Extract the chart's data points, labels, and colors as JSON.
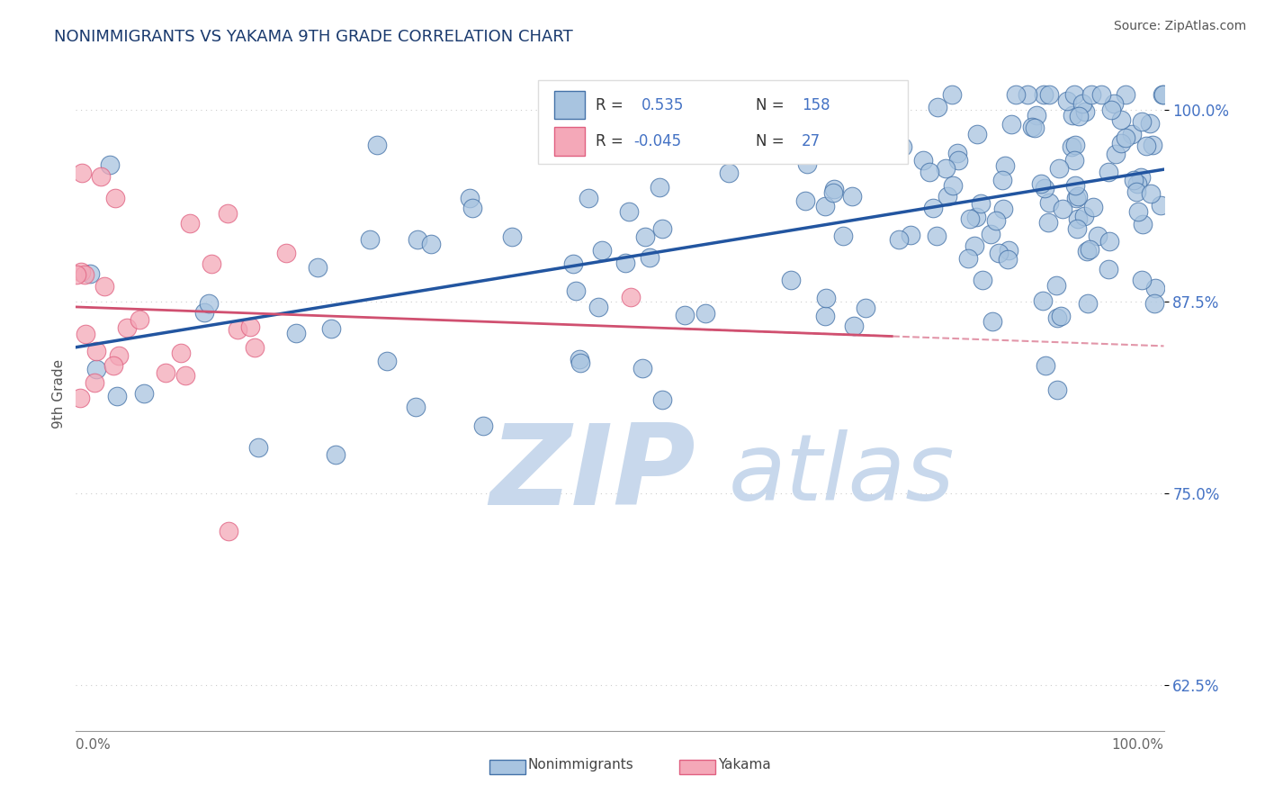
{
  "title": "NONIMMIGRANTS VS YAKAMA 9TH GRADE CORRELATION CHART",
  "source_text": "Source: ZipAtlas.com",
  "ylabel": "9th Grade",
  "ytick_vals": [
    0.625,
    0.75,
    0.875,
    1.0
  ],
  "ytick_labels": [
    "62.5%",
    "75.0%",
    "87.5%",
    "100.0%"
  ],
  "xmin": 0.0,
  "xmax": 1.0,
  "ymin": 0.595,
  "ymax": 1.035,
  "blue_color": "#a8c4e0",
  "blue_edge_color": "#4472a8",
  "pink_color": "#f4a8b8",
  "pink_edge_color": "#e06080",
  "blue_line_color": "#2255a0",
  "pink_line_color": "#d05070",
  "title_color": "#1a3a6e",
  "axis_color": "#4472c4",
  "watermark_zip_color": "#c8d8ec",
  "watermark_atlas_color": "#c8d8ec",
  "grid_color": "#cccccc",
  "grid_style": "dotted",
  "blue_N": 158,
  "pink_N": 27
}
